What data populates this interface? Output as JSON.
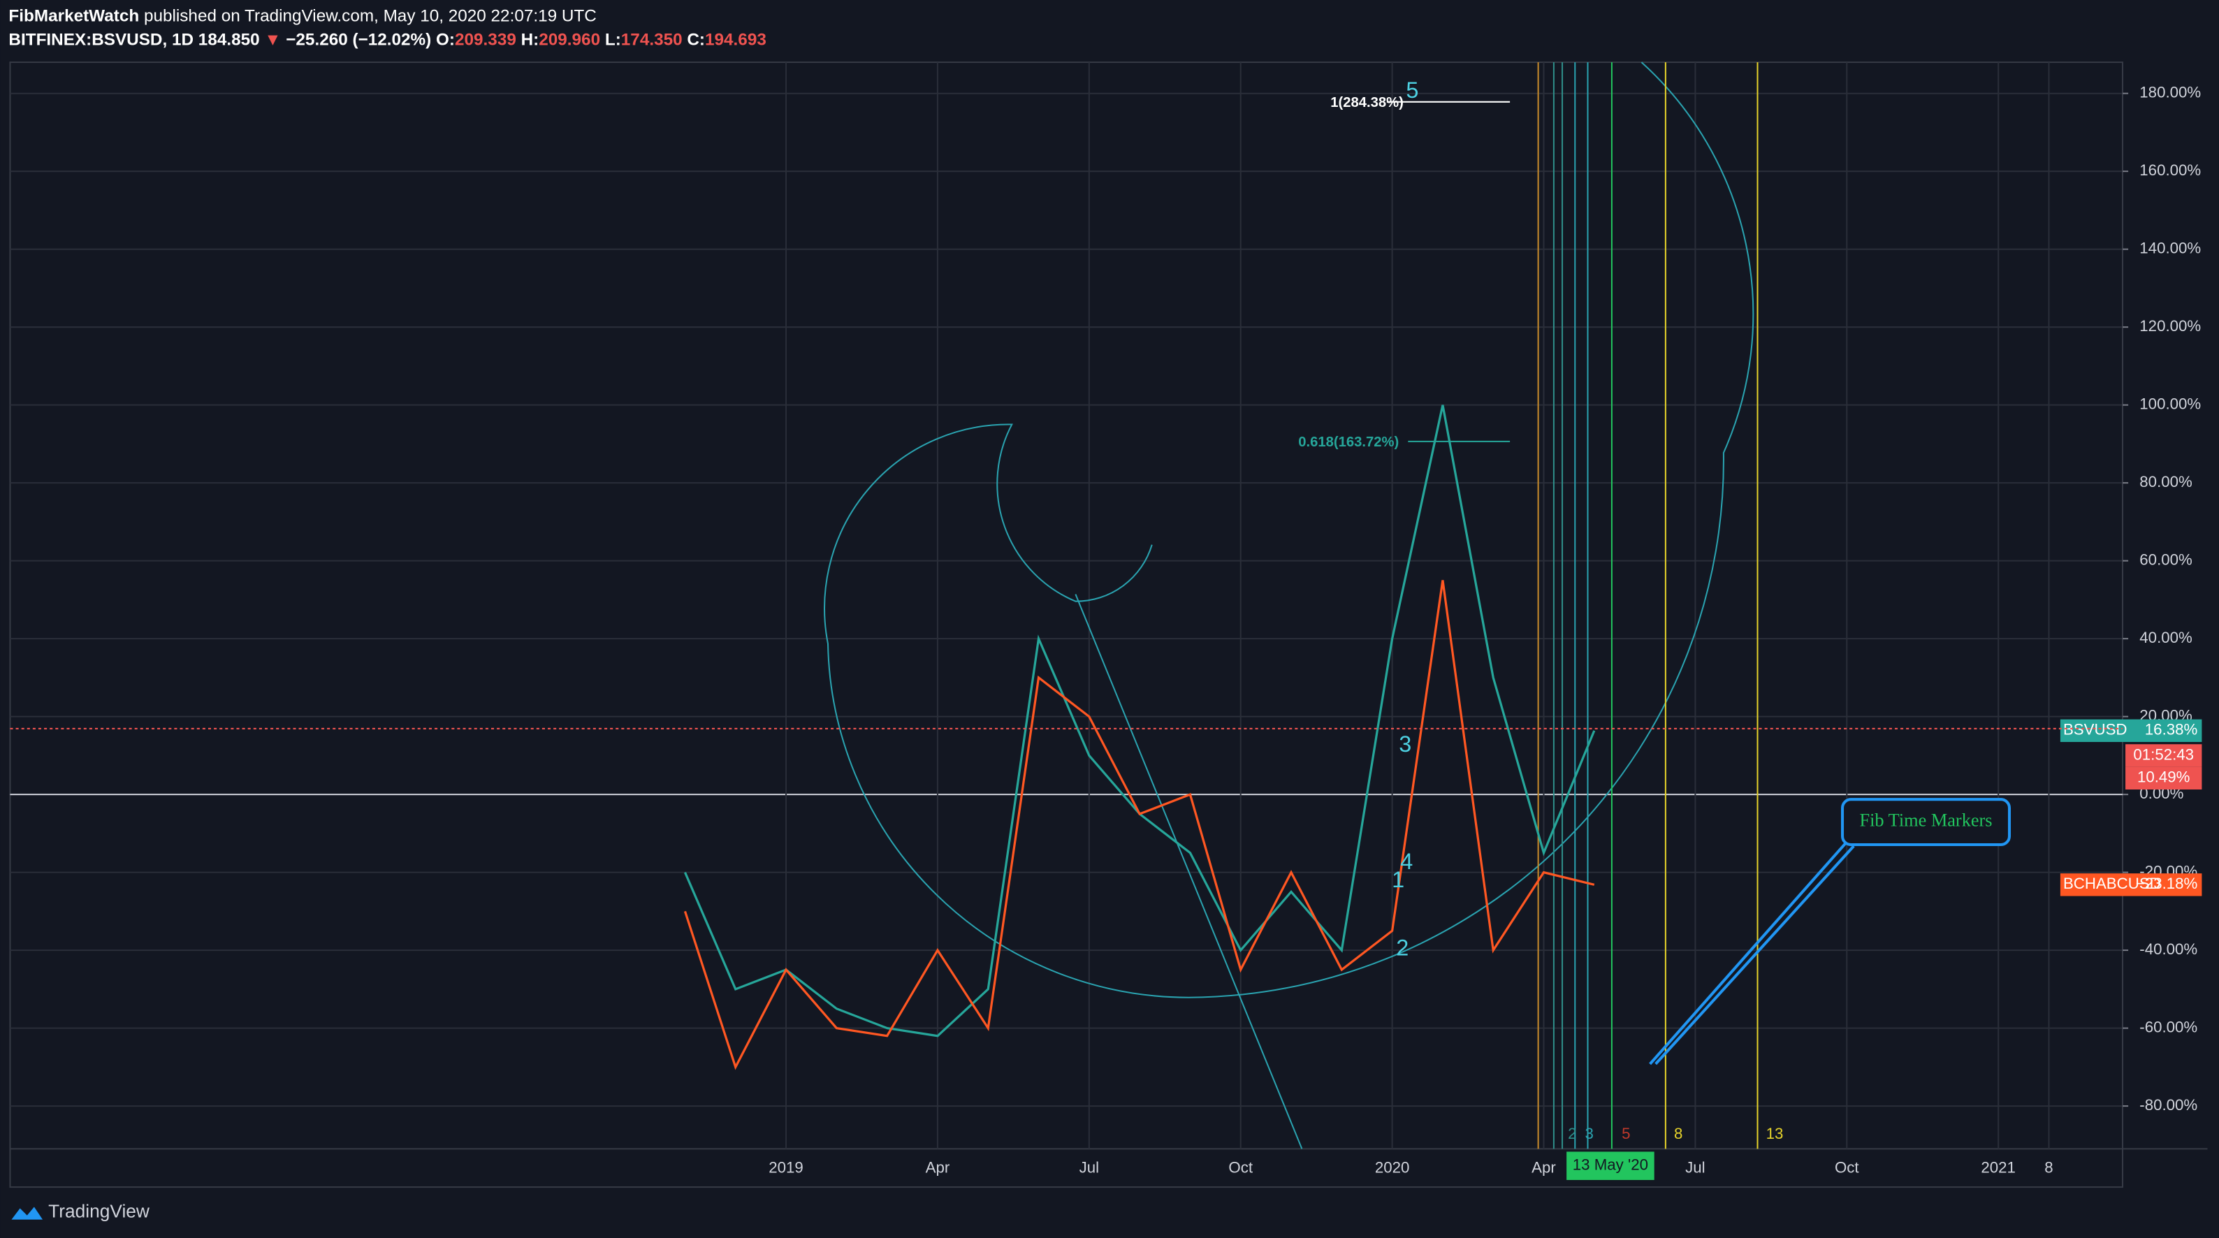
{
  "header": {
    "publisher": "FibMarketWatch",
    "published": "published on TradingView.com, May 10, 2020 22:07:19 UTC",
    "quote": [
      {
        "text": "BITFINEX:BSVUSD, 1D",
        "color": "#ffffff"
      },
      {
        "text": "184.850",
        "color": "#ffffff"
      },
      {
        "text": "▼",
        "color": "#ef5350"
      },
      {
        "text": "−25.260 (−12.02%)",
        "color": "#ffffff"
      },
      {
        "text": "O:",
        "color": "#ffffff"
      },
      {
        "text": "209.339",
        "color": "#ef5350"
      },
      {
        "text": "H:",
        "color": "#ffffff"
      },
      {
        "text": "209.960",
        "color": "#ef5350"
      },
      {
        "text": "L:",
        "color": "#ffffff"
      },
      {
        "text": "174.350",
        "color": "#ef5350"
      },
      {
        "text": "C:",
        "color": "#ffffff"
      },
      {
        "text": "194.693",
        "color": "#ef5350"
      }
    ]
  },
  "chart_data": {
    "type": "line",
    "categories": [
      null,
      null,
      "2019",
      null,
      null,
      "Apr",
      null,
      null,
      "Jul",
      null,
      null,
      "Oct",
      null,
      null,
      "2020",
      null,
      null,
      "Apr",
      null,
      null,
      "Jul",
      null,
      null,
      "Oct",
      null,
      null,
      "2021",
      "8"
    ],
    "series": [
      {
        "name": "BSVUSD",
        "color": "#26a69a",
        "values": [
          -20,
          -50,
          -45,
          -55,
          -60,
          -62,
          -50,
          40,
          10,
          -5,
          -15,
          -40,
          -25,
          -40,
          40,
          100,
          30,
          -15,
          16.38,
          null,
          null,
          null,
          null,
          null,
          null,
          null,
          null,
          null
        ],
        "value_labels": [
          null,
          null,
          null,
          null,
          null,
          null,
          null,
          null,
          null,
          null,
          null,
          null,
          null,
          null,
          null,
          null,
          null,
          null,
          "16.38%",
          null,
          null,
          null,
          null,
          null,
          null,
          null,
          null,
          null
        ]
      },
      {
        "name": "BCHABCUSD",
        "color": "#ff5722",
        "values": [
          -30,
          -70,
          -45,
          -60,
          -62,
          -40,
          -60,
          30,
          20,
          -5,
          0,
          -45,
          -20,
          -45,
          -35,
          55,
          -40,
          -20,
          -23.18,
          null,
          null,
          null,
          null,
          null,
          null,
          null,
          null,
          null
        ],
        "value_labels": [
          null,
          null,
          null,
          null,
          null,
          null,
          null,
          null,
          null,
          null,
          null,
          null,
          null,
          null,
          null,
          null,
          null,
          null,
          "−23.18%",
          null,
          null,
          null,
          null,
          null,
          null,
          null,
          null,
          null
        ]
      }
    ],
    "ylim": [
      -91,
      188
    ],
    "yticks": [
      {
        "value": -80,
        "label": "-80.00%"
      },
      {
        "value": -60,
        "label": "-60.00%"
      },
      {
        "value": -40,
        "label": "-40.00%"
      },
      {
        "value": -20,
        "label": "-20.00%"
      },
      {
        "value": 0,
        "label": "0.00%"
      },
      {
        "value": 20,
        "label": "20.00%"
      },
      {
        "value": 40,
        "label": "40.00%"
      },
      {
        "value": 60,
        "label": "60.00%"
      },
      {
        "value": 80,
        "label": "80.00%"
      },
      {
        "value": 100,
        "label": "100.00%"
      },
      {
        "value": 120,
        "label": "120.00%"
      },
      {
        "value": 140,
        "label": "140.00%"
      },
      {
        "value": 160,
        "label": "160.00%"
      },
      {
        "value": 180,
        "label": "180.00%"
      }
    ],
    "grid": true,
    "countdown": "01:52:43",
    "secondary_label": "10.49%",
    "annotations": [
      {
        "text": "1(284.38%)"
      },
      {
        "text": "0.618(163.72%)"
      },
      {
        "text": "5"
      },
      {
        "text": "3"
      },
      {
        "text": "4"
      },
      {
        "text": "1"
      },
      {
        "text": "2"
      },
      {
        "text": "Fib Time Markers"
      },
      {
        "text": "13 May '20"
      },
      {
        "text": "2"
      },
      {
        "text": "3"
      },
      {
        "text": "5"
      },
      {
        "text": "8"
      },
      {
        "text": "13"
      }
    ]
  },
  "footer": {
    "brand": "TradingView"
  }
}
